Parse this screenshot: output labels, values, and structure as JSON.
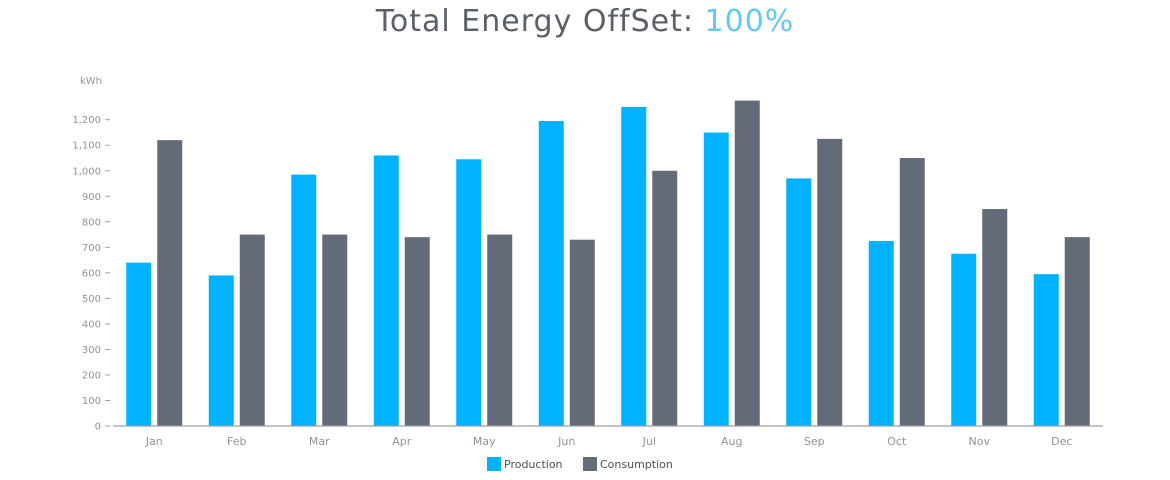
{
  "title": {
    "text": "Total Energy OffSet: ",
    "value": "100%"
  },
  "colors": {
    "production": "#00b2ff",
    "consumption": "#636b78",
    "axis": "#9aa0a6",
    "title_accent": "#62c8f5"
  },
  "chart_data": {
    "type": "bar",
    "title": "Total Energy OffSet: 100%",
    "ylabel": "kWh",
    "xlabel": "",
    "ylim": [
      0,
      1300
    ],
    "yticks": [
      0,
      100,
      200,
      300,
      400,
      500,
      600,
      700,
      800,
      900,
      1000,
      1100,
      1200
    ],
    "ytick_labels": [
      "0",
      "100",
      "200",
      "300",
      "400",
      "500",
      "600",
      "700",
      "800",
      "900",
      "1,000",
      "1,100",
      "1,200"
    ],
    "categories": [
      "Jan",
      "Feb",
      "Mar",
      "Apr",
      "May",
      "Jun",
      "Jul",
      "Aug",
      "Sep",
      "Oct",
      "Nov",
      "Dec"
    ],
    "series": [
      {
        "name": "Production",
        "values": [
          640,
          590,
          985,
          1060,
          1045,
          1195,
          1250,
          1150,
          970,
          725,
          675,
          595
        ]
      },
      {
        "name": "Consumption",
        "values": [
          1120,
          750,
          750,
          740,
          750,
          730,
          1000,
          1275,
          1125,
          1050,
          850,
          740
        ]
      }
    ],
    "grid": false,
    "legend": "bottom-center"
  }
}
